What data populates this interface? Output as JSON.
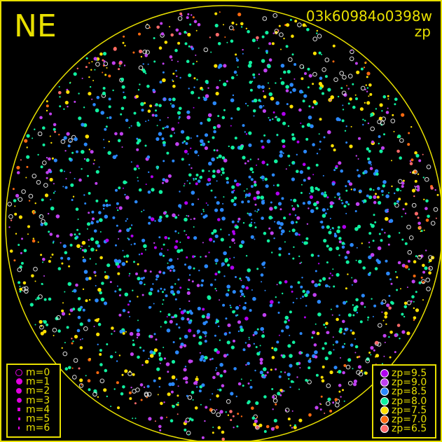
{
  "header": {
    "direction": "NE",
    "camera_id": "03k60984o0398w",
    "mode": "zp"
  },
  "chart_data": {
    "type": "scatter",
    "title": "03k60984o0398w",
    "subtitle": "zp",
    "projection": "all-sky fisheye (circular horizon)",
    "size_legend": [
      {
        "label": "m=0",
        "size": 0,
        "hollow": true
      },
      {
        "label": "m=1",
        "size": 1
      },
      {
        "label": "m=2",
        "size": 2
      },
      {
        "label": "m=3",
        "size": 3
      },
      {
        "label": "m=4",
        "size": 4
      },
      {
        "label": "m=5",
        "size": 5
      },
      {
        "label": "m=6",
        "size": 6
      }
    ],
    "color_legend": [
      {
        "label": "zp=9.5",
        "value": 9.5,
        "color": "#b000f0"
      },
      {
        "label": "zp=9.0",
        "value": 9.0,
        "color": "#c040f0"
      },
      {
        "label": "zp=8.5",
        "value": 8.5,
        "color": "#2a88ff"
      },
      {
        "label": "zp=8.0",
        "value": 8.0,
        "color": "#10f0a0"
      },
      {
        "label": "zp=7.5",
        "value": 7.5,
        "color": "#ffe000"
      },
      {
        "label": "zp=7.0",
        "value": 7.0,
        "color": "#ff6a10"
      },
      {
        "label": "zp=6.5",
        "value": 6.5,
        "color": "#ff6a6a"
      }
    ],
    "axis_color": "#e8e000",
    "grid": false,
    "legend_placement": [
      "bottom-left",
      "bottom-right"
    ]
  }
}
